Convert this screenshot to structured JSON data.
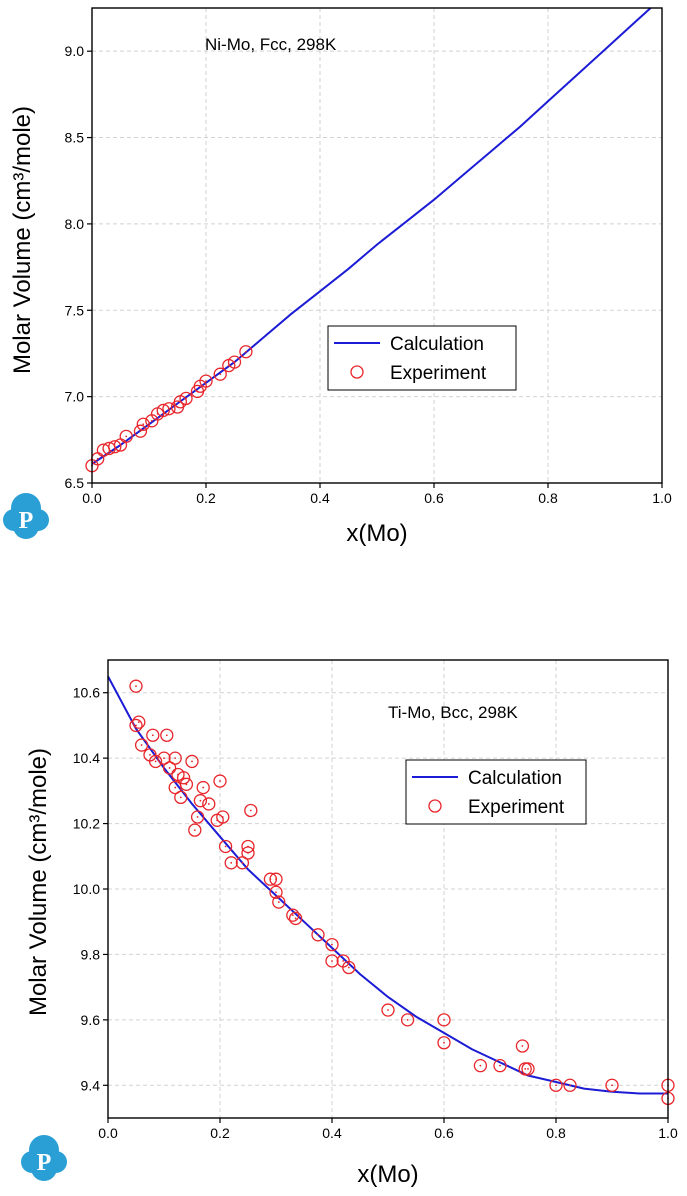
{
  "chart_data": [
    {
      "type": "line",
      "annotation": "Ni-Mo, Fcc, 298K",
      "xlabel": "x(Mo)",
      "ylabel": "Molar Volume (cm³/mole)",
      "xlim": [
        0.0,
        1.0
      ],
      "ylim": [
        6.5,
        9.25
      ],
      "x_ticks": [
        "0.0",
        "0.2",
        "0.4",
        "0.6",
        "0.8",
        "1.0"
      ],
      "y_ticks": [
        "6.5",
        "7.0",
        "7.5",
        "8.0",
        "8.5",
        "9.0"
      ],
      "grid": true,
      "legend_position": "center-right",
      "series": [
        {
          "name": "Calculation",
          "style": "line",
          "color": "#1c1cd6",
          "x": [
            0.0,
            0.05,
            0.1,
            0.15,
            0.2,
            0.25,
            0.3,
            0.35,
            0.4,
            0.45,
            0.5,
            0.55,
            0.6,
            0.65,
            0.7,
            0.75,
            0.8,
            0.85,
            0.9,
            0.95,
            0.98
          ],
          "y": [
            6.61,
            6.72,
            6.84,
            6.96,
            7.08,
            7.2,
            7.34,
            7.48,
            7.61,
            7.74,
            7.88,
            8.01,
            8.14,
            8.28,
            8.42,
            8.56,
            8.71,
            8.86,
            9.01,
            9.16,
            9.25
          ]
        },
        {
          "name": "Experiment",
          "style": "marker",
          "color": "#e8262b",
          "x": [
            0.0,
            0.01,
            0.02,
            0.03,
            0.04,
            0.05,
            0.06,
            0.085,
            0.09,
            0.105,
            0.115,
            0.125,
            0.135,
            0.15,
            0.155,
            0.165,
            0.185,
            0.19,
            0.2,
            0.225,
            0.24,
            0.25,
            0.27
          ],
          "y": [
            6.6,
            6.64,
            6.69,
            6.7,
            6.71,
            6.72,
            6.77,
            6.8,
            6.84,
            6.86,
            6.9,
            6.92,
            6.93,
            6.94,
            6.97,
            6.99,
            7.03,
            7.06,
            7.09,
            7.13,
            7.18,
            7.2,
            7.26
          ]
        }
      ]
    },
    {
      "type": "line",
      "annotation": "Ti-Mo, Bcc, 298K",
      "xlabel": "x(Mo)",
      "ylabel": "Molar Volume (cm³/mole)",
      "xlim": [
        0.0,
        1.0
      ],
      "ylim": [
        9.3,
        10.7
      ],
      "x_ticks": [
        "0.0",
        "0.2",
        "0.4",
        "0.6",
        "0.8",
        "1.0"
      ],
      "y_ticks": [
        "9.4",
        "9.6",
        "9.8",
        "10.0",
        "10.2",
        "10.4",
        "10.6"
      ],
      "grid": true,
      "legend_position": "top-right",
      "series": [
        {
          "name": "Calculation",
          "style": "line",
          "color": "#1c1cd6",
          "x": [
            0.0,
            0.05,
            0.1,
            0.15,
            0.2,
            0.25,
            0.3,
            0.35,
            0.4,
            0.45,
            0.5,
            0.55,
            0.6,
            0.65,
            0.7,
            0.75,
            0.8,
            0.85,
            0.9,
            0.95,
            1.0
          ],
          "y": [
            10.65,
            10.49,
            10.37,
            10.26,
            10.16,
            10.06,
            9.98,
            9.9,
            9.82,
            9.74,
            9.67,
            9.61,
            9.56,
            9.51,
            9.47,
            9.43,
            9.41,
            9.39,
            9.38,
            9.375,
            9.375
          ]
        },
        {
          "name": "Experiment",
          "style": "marker",
          "color": "#e8262b",
          "x": [
            0.05,
            0.05,
            0.055,
            0.06,
            0.075,
            0.08,
            0.085,
            0.1,
            0.105,
            0.11,
            0.12,
            0.12,
            0.125,
            0.13,
            0.135,
            0.14,
            0.15,
            0.155,
            0.16,
            0.165,
            0.17,
            0.18,
            0.195,
            0.2,
            0.205,
            0.21,
            0.22,
            0.24,
            0.25,
            0.25,
            0.255,
            0.29,
            0.3,
            0.3,
            0.305,
            0.33,
            0.335,
            0.375,
            0.4,
            0.4,
            0.42,
            0.43,
            0.5,
            0.535,
            0.6,
            0.6,
            0.665,
            0.7,
            0.74,
            0.745,
            0.75,
            0.8,
            0.825,
            0.9,
            1.0,
            1.0
          ],
          "y": [
            10.62,
            10.5,
            10.51,
            10.44,
            10.41,
            10.47,
            10.39,
            10.4,
            10.47,
            10.37,
            10.4,
            10.31,
            10.35,
            10.28,
            10.34,
            10.32,
            10.39,
            10.18,
            10.22,
            10.27,
            10.31,
            10.26,
            10.21,
            10.33,
            10.22,
            10.13,
            10.08,
            10.08,
            10.11,
            10.13,
            10.24,
            10.03,
            9.99,
            10.03,
            9.96,
            9.92,
            9.91,
            9.86,
            9.83,
            9.78,
            9.78,
            9.76,
            9.63,
            9.6,
            9.53,
            9.6,
            9.46,
            9.46,
            9.52,
            9.45,
            9.45,
            9.4,
            9.4,
            9.4,
            9.4,
            9.36
          ]
        }
      ]
    }
  ]
}
